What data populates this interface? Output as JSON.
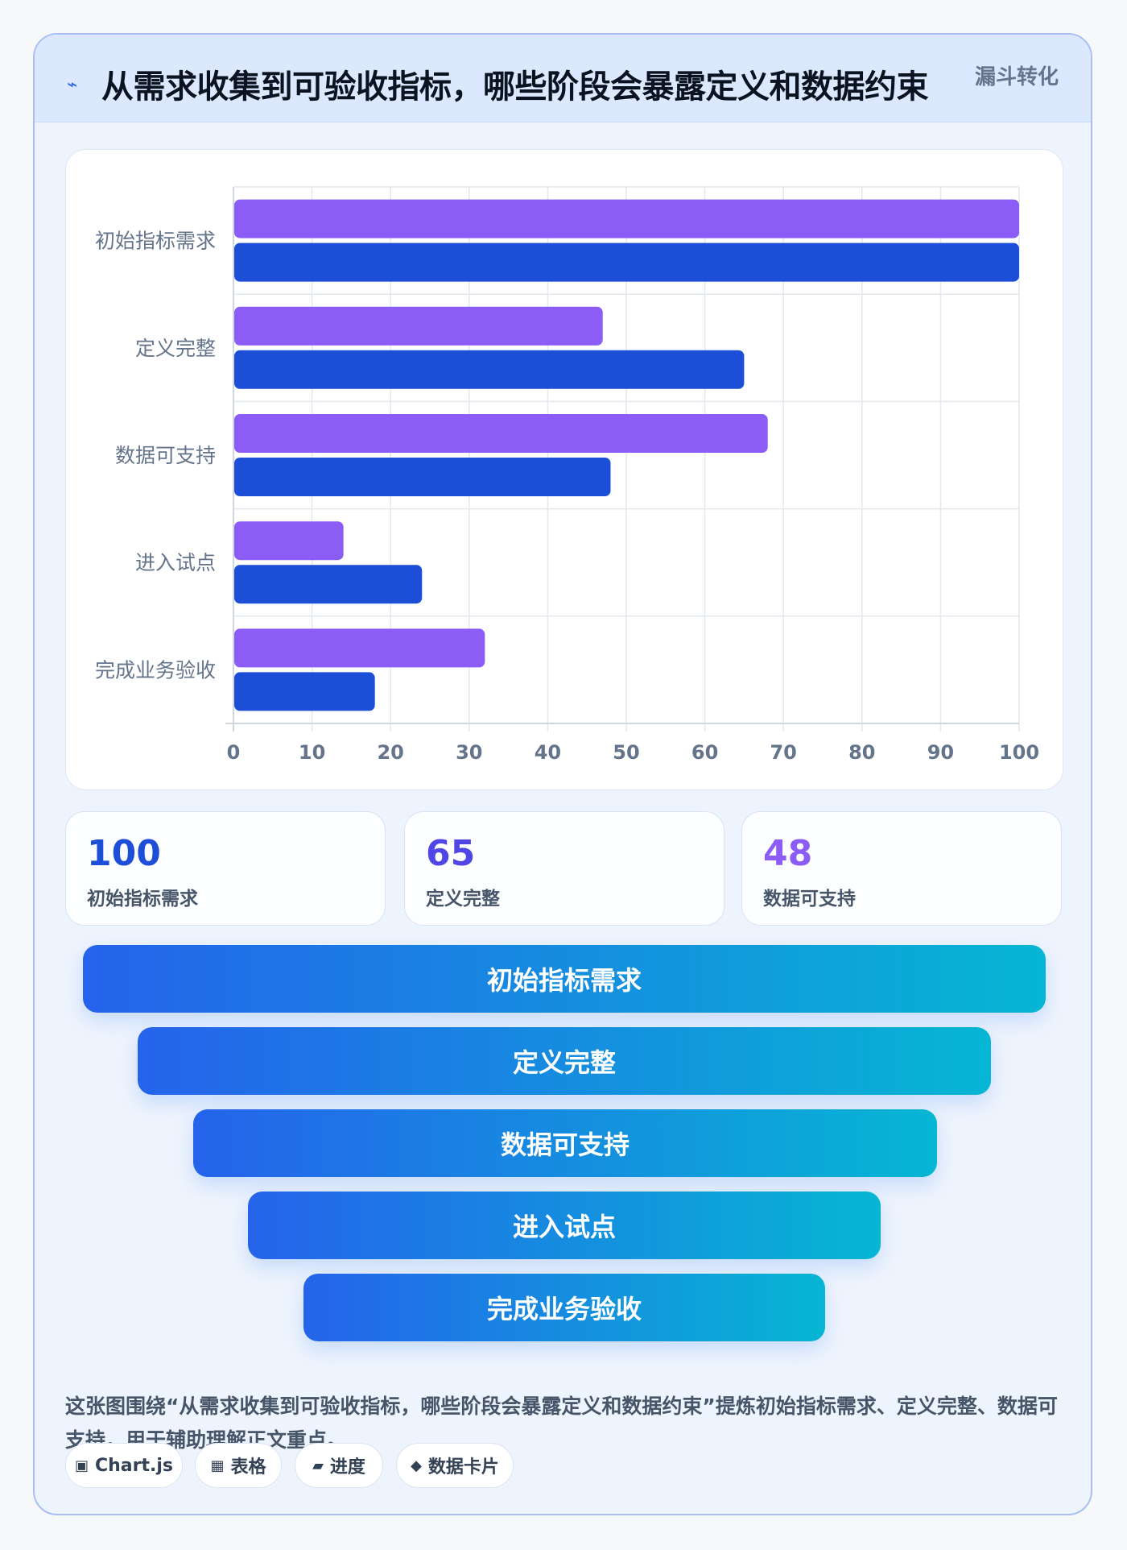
{
  "header": {
    "icon": "bolt-icon",
    "title": "从需求收集到可验收指标，哪些阶段会暴露定义和数据约束",
    "tag": "漏斗转化"
  },
  "chart_data": {
    "type": "bar",
    "orientation": "horizontal",
    "categories": [
      "初始指标需求",
      "定义完整",
      "数据可支持",
      "进入试点",
      "完成业务验收"
    ],
    "series": [
      {
        "color": "#8b5cf6",
        "values": [
          100,
          47,
          68,
          14,
          32
        ]
      },
      {
        "color": "#1d4ed8",
        "values": [
          100,
          65,
          48,
          24,
          18
        ]
      }
    ],
    "xlim": [
      0,
      100
    ],
    "xticks": [
      "0",
      "10",
      "20",
      "30",
      "40",
      "50",
      "60",
      "70",
      "80",
      "90",
      "100"
    ],
    "grid": true
  },
  "stats": [
    {
      "value": "100",
      "label": "初始指标需求",
      "color": "#1d4ed8"
    },
    {
      "value": "65",
      "label": "定义完整",
      "color": "#4f46e5"
    },
    {
      "value": "48",
      "label": "数据可支持",
      "color": "#8b5cf6"
    }
  ],
  "funnel": [
    "初始指标需求",
    "定义完整",
    "数据可支持",
    "进入试点",
    "完成业务验收"
  ],
  "description": "这张图围绕“从需求收集到可验收指标，哪些阶段会暴露定义和数据约束”提炼初始指标需求、定义完整、数据可支持，用于辅助理解正文重点。",
  "pills": [
    {
      "icon": "▣",
      "icon_name": "chart-icon",
      "label": "Chart.js"
    },
    {
      "icon": "▦",
      "icon_name": "table-icon",
      "label": "表格"
    },
    {
      "icon": "▰",
      "icon_name": "progress-icon",
      "label": "进度"
    },
    {
      "icon": "◆",
      "icon_name": "data-card-icon",
      "label": "数据卡片"
    }
  ]
}
